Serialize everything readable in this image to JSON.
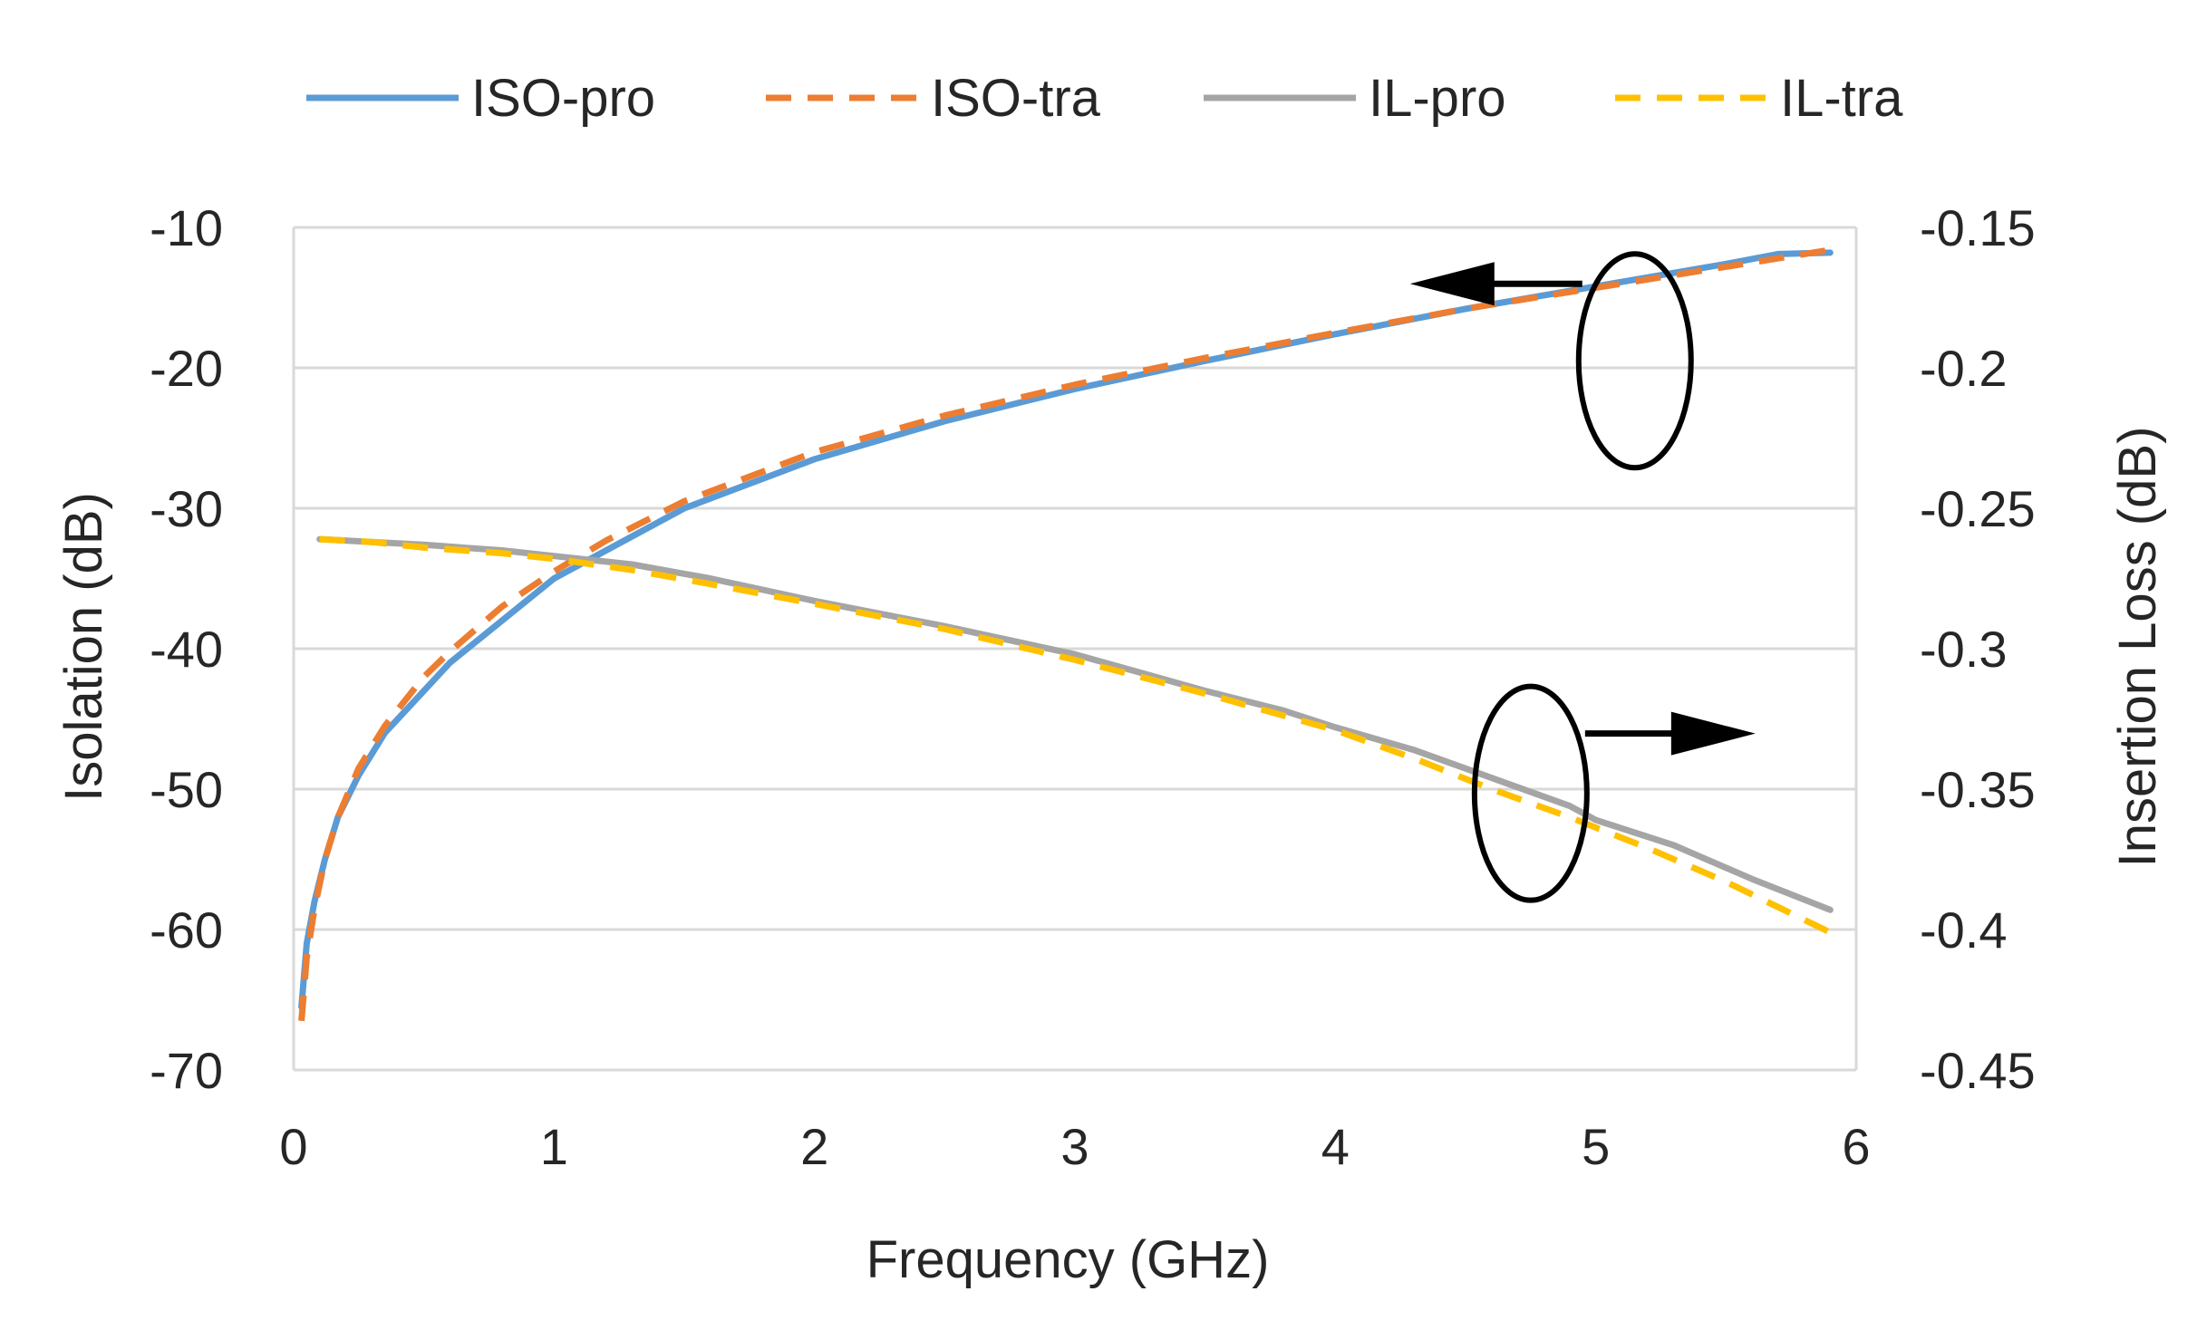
{
  "chart_data": {
    "type": "line",
    "title": "",
    "xlabel": "Frequency (GHz)",
    "ylabel_left": "Isolation (dB)",
    "ylabel_right": "Insertion Loss (dB)",
    "xlim": [
      0,
      6
    ],
    "ylim_left": [
      -70,
      -10
    ],
    "ylim_right": [
      -0.45,
      -0.15
    ],
    "x_ticks": [
      "0",
      "1",
      "2",
      "3",
      "4",
      "5",
      "6"
    ],
    "y_left_ticks": [
      "-10",
      "-20",
      "-30",
      "-40",
      "-50",
      "-60",
      "-70"
    ],
    "y_right_ticks": [
      "-0.15",
      "-0.2",
      "-0.25",
      "-0.3",
      "-0.35",
      "-0.4",
      "-0.45"
    ],
    "grid": true,
    "legend_position": "top",
    "series": [
      {
        "name": "ISO-pro",
        "axis": "left",
        "color": "#5B9BD5",
        "dash": "solid",
        "x": [
          0.03,
          0.05,
          0.08,
          0.12,
          0.17,
          0.25,
          0.35,
          0.5,
          0.6,
          0.8,
          1.0,
          1.2,
          1.5,
          2.0,
          2.5,
          3.0,
          3.5,
          4.0,
          4.5,
          5.0,
          5.5,
          5.7,
          5.9
        ],
        "values": [
          -65.5,
          -61,
          -58,
          -55,
          -52,
          -49,
          -46,
          -43,
          -41,
          -38,
          -35,
          -33,
          -30,
          -26.5,
          -23.8,
          -21.5,
          -19.5,
          -17.6,
          -15.8,
          -14.2,
          -12.6,
          -11.9,
          -11.8
        ]
      },
      {
        "name": "ISO-tra",
        "axis": "left",
        "color": "#ED7D31",
        "dash": "dashed",
        "x": [
          0.03,
          0.05,
          0.08,
          0.12,
          0.17,
          0.25,
          0.35,
          0.5,
          0.6,
          0.8,
          1.0,
          1.2,
          1.5,
          2.0,
          2.5,
          3.0,
          3.5,
          4.0,
          4.5,
          5.0,
          5.5,
          5.9
        ],
        "values": [
          -66.5,
          -62,
          -58.5,
          -55,
          -52,
          -48.5,
          -45.5,
          -42,
          -40.2,
          -37,
          -34.5,
          -32.3,
          -29.5,
          -26,
          -23.4,
          -21.2,
          -19.3,
          -17.5,
          -15.8,
          -14.3,
          -12.8,
          -11.6
        ]
      },
      {
        "name": "IL-pro",
        "axis": "right",
        "color": "#A5A5A5",
        "dash": "solid",
        "x": [
          0.1,
          0.3,
          0.5,
          0.8,
          1.0,
          1.3,
          1.6,
          2.0,
          2.5,
          3.0,
          3.5,
          3.8,
          4.0,
          4.3,
          4.6,
          4.9,
          5.0,
          5.3,
          5.6,
          5.9
        ],
        "values": [
          -0.261,
          -0.262,
          -0.263,
          -0.265,
          -0.267,
          -0.27,
          -0.275,
          -0.283,
          -0.292,
          -0.302,
          -0.315,
          -0.322,
          -0.328,
          -0.336,
          -0.346,
          -0.356,
          -0.361,
          -0.37,
          -0.382,
          -0.393
        ]
      },
      {
        "name": "IL-tra",
        "axis": "right",
        "color": "#FFC000",
        "dash": "dashed",
        "x": [
          0.1,
          0.3,
          0.5,
          0.8,
          1.0,
          1.3,
          1.6,
          2.0,
          2.5,
          3.0,
          3.5,
          4.0,
          4.3,
          4.6,
          4.9,
          5.2,
          5.5,
          5.7,
          5.9
        ],
        "values": [
          -0.261,
          -0.262,
          -0.264,
          -0.266,
          -0.268,
          -0.272,
          -0.277,
          -0.284,
          -0.293,
          -0.304,
          -0.316,
          -0.329,
          -0.339,
          -0.35,
          -0.36,
          -0.371,
          -0.383,
          -0.392,
          -0.401
        ]
      }
    ],
    "annotations": [
      {
        "type": "ellipse-arrow",
        "target": "ISO-pro, ISO-tra",
        "arrow_direction": "left",
        "center": [
          5.15,
          -19.5
        ]
      },
      {
        "type": "ellipse-arrow",
        "target": "IL-pro, IL-tra",
        "arrow_direction": "right",
        "center": [
          4.75,
          -0.3515
        ]
      }
    ]
  }
}
